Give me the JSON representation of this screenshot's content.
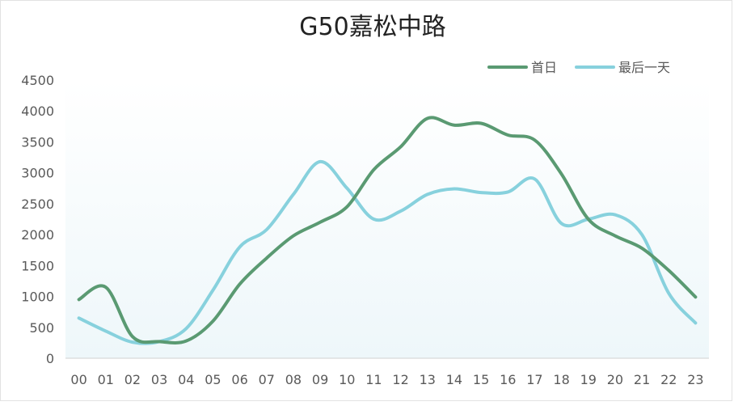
{
  "chart_data": {
    "type": "line",
    "title": "G50嘉松中路",
    "xlabel": "",
    "ylabel": "",
    "categories": [
      "00",
      "01",
      "02",
      "03",
      "04",
      "05",
      "06",
      "07",
      "08",
      "09",
      "10",
      "11",
      "12",
      "13",
      "14",
      "15",
      "16",
      "17",
      "18",
      "19",
      "20",
      "21",
      "22",
      "23"
    ],
    "ylim": [
      0,
      4500
    ],
    "yticks": [
      0,
      500,
      1000,
      1500,
      2000,
      2500,
      3000,
      3500,
      4000,
      4500
    ],
    "grid": false,
    "legend_position": "top-right",
    "series": [
      {
        "name": "首日",
        "color": "#5a9a72",
        "values": [
          950,
          1150,
          350,
          270,
          280,
          600,
          1200,
          1620,
          1980,
          2200,
          2450,
          3050,
          3420,
          3880,
          3770,
          3800,
          3610,
          3530,
          2980,
          2250,
          1980,
          1780,
          1420,
          990
        ]
      },
      {
        "name": "最后一天",
        "color": "#87d1dd",
        "values": [
          650,
          440,
          260,
          270,
          480,
          1100,
          1800,
          2080,
          2650,
          3180,
          2750,
          2250,
          2380,
          2650,
          2740,
          2680,
          2690,
          2900,
          2180,
          2250,
          2320,
          2000,
          1050,
          570
        ]
      }
    ]
  }
}
